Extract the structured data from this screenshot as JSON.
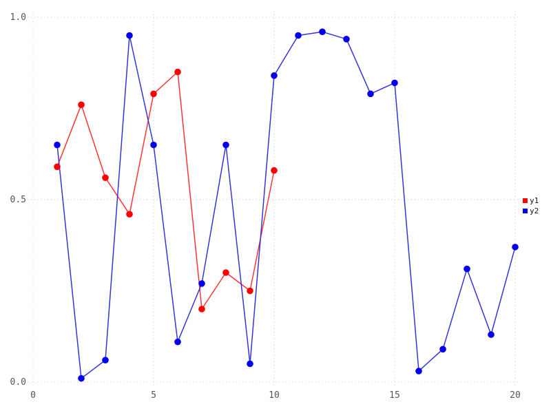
{
  "chart_data": {
    "type": "line",
    "title": "",
    "xlabel": "",
    "ylabel": "",
    "xlim": [
      0,
      20
    ],
    "ylim": [
      0.0,
      1.0
    ],
    "grid": "dotted",
    "legend_position": "right",
    "x_tick_values": [
      0,
      5,
      10,
      15,
      20
    ],
    "x_tick_labels": [
      "0",
      "5",
      "10",
      "15",
      "20"
    ],
    "y_tick_values": [
      0.0,
      0.5,
      1.0
    ],
    "y_tick_labels": [
      "0.0",
      "0.5",
      "1.0"
    ],
    "series": [
      {
        "name": "y1",
        "marker_color": "#ff0000",
        "line_color": "#ff3333",
        "x": [
          1,
          2,
          3,
          4,
          5,
          6,
          7,
          8,
          9,
          10
        ],
        "values": [
          0.59,
          0.76,
          0.56,
          0.46,
          0.79,
          0.85,
          0.2,
          0.3,
          0.25,
          0.58
        ]
      },
      {
        "name": "y2",
        "marker_color": "#0000ee",
        "line_color": "#3333dd",
        "x": [
          1,
          2,
          3,
          4,
          5,
          6,
          7,
          8,
          9,
          10,
          11,
          12,
          13,
          14,
          15,
          16,
          17,
          18,
          19,
          20
        ],
        "values": [
          0.65,
          0.01,
          0.06,
          0.95,
          0.65,
          0.11,
          0.27,
          0.65,
          0.05,
          0.84,
          0.95,
          0.96,
          0.94,
          0.79,
          0.82,
          0.03,
          0.09,
          0.31,
          0.13,
          0.37
        ]
      }
    ]
  },
  "colors": {
    "background": "#ffffff",
    "gridline": "#d8d8e0",
    "tick_label": "#57525b",
    "legend_text": "#111111"
  }
}
